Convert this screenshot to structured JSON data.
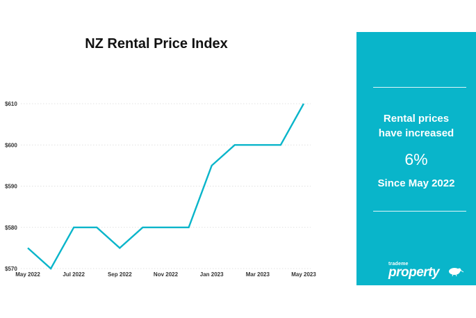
{
  "chart_data": {
    "type": "line",
    "title": "NZ Rental Price Index",
    "x": [
      "May 2022",
      "Jun 2022",
      "Jul 2022",
      "Aug 2022",
      "Sep 2022",
      "Oct 2022",
      "Nov 2022",
      "Dec 2022",
      "Jan 2023",
      "Feb 2023",
      "Mar 2023",
      "Apr 2023",
      "May 2023"
    ],
    "x_tick_labels": [
      "May 2022",
      "Jul 2022",
      "Sep 2022",
      "Nov 2022",
      "Jan 2023",
      "Mar 2023",
      "May 2023"
    ],
    "y_tick_labels": [
      "$570",
      "$580",
      "$590",
      "$600",
      "$610"
    ],
    "y_ticks": [
      570,
      580,
      590,
      600,
      610
    ],
    "values": [
      575,
      570,
      580,
      580,
      575,
      580,
      580,
      580,
      595,
      600,
      600,
      600,
      610
    ],
    "ylim": [
      570,
      610
    ],
    "grid": true,
    "line_color": "#09b5ca"
  },
  "panel": {
    "line1": "Rental prices",
    "line2": "have increased",
    "percent": "6%",
    "since": "Since May 2022",
    "background": "#09b5ca"
  },
  "brand": {
    "small": "trademe",
    "big": "property",
    "icon": "kiwi-bird-icon"
  }
}
